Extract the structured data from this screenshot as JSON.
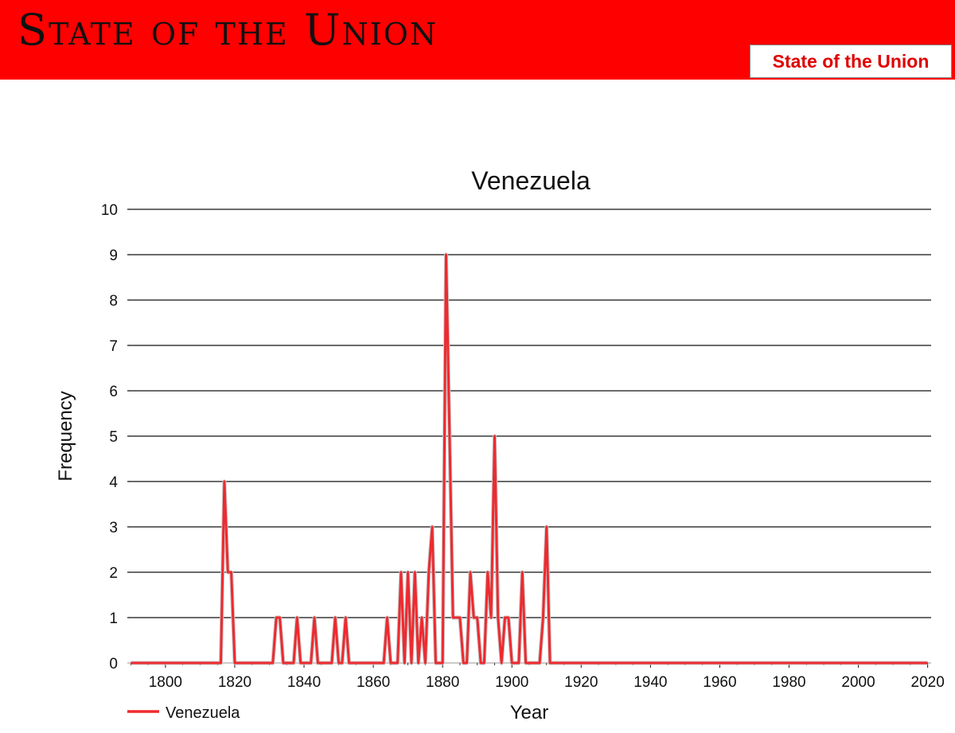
{
  "header": {
    "title": "State of the Union",
    "link_label": "State of the Union"
  },
  "colors": {
    "banner": "#ff0000",
    "series": "#ee2a2f",
    "link_text": "#e00000"
  },
  "chart_data": {
    "type": "line",
    "title": "Venezuela",
    "xlabel": "Year",
    "ylabel": "Frequency",
    "xlim": [
      1789,
      2021
    ],
    "ylim": [
      0,
      10
    ],
    "xticks": [
      1800,
      1820,
      1840,
      1860,
      1880,
      1900,
      1920,
      1940,
      1960,
      1980,
      2000,
      2020
    ],
    "yticks": [
      0,
      1,
      2,
      3,
      4,
      5,
      6,
      7,
      8,
      9,
      10
    ],
    "grid": "horizontal",
    "legend": "bottom-left",
    "series": [
      {
        "name": "Venezuela",
        "x": [
          1790,
          1815,
          1816,
          1817,
          1818,
          1819,
          1820,
          1821,
          1830,
          1831,
          1832,
          1833,
          1834,
          1835,
          1836,
          1837,
          1838,
          1839,
          1840,
          1841,
          1842,
          1843,
          1844,
          1845,
          1846,
          1847,
          1848,
          1849,
          1850,
          1851,
          1852,
          1853,
          1854,
          1861,
          1862,
          1863,
          1864,
          1865,
          1866,
          1867,
          1868,
          1869,
          1870,
          1871,
          1872,
          1873,
          1874,
          1875,
          1876,
          1877,
          1878,
          1879,
          1880,
          1881,
          1882,
          1883,
          1884,
          1885,
          1886,
          1887,
          1888,
          1889,
          1890,
          1891,
          1892,
          1893,
          1894,
          1895,
          1896,
          1897,
          1898,
          1899,
          1900,
          1901,
          1902,
          1903,
          1904,
          1905,
          1906,
          1907,
          1908,
          1909,
          1910,
          1911,
          1912,
          2020
        ],
        "values": [
          0,
          0,
          0,
          4,
          2,
          2,
          0,
          0,
          0,
          0,
          1,
          1,
          0,
          0,
          0,
          0,
          1,
          0,
          0,
          0,
          0,
          1,
          0,
          0,
          0,
          0,
          0,
          1,
          0,
          0,
          1,
          0,
          0,
          0,
          0,
          0,
          1,
          0,
          0,
          0,
          2,
          0,
          2,
          0,
          2,
          0,
          1,
          0,
          2,
          3,
          0,
          0,
          0,
          9,
          5,
          1,
          1,
          1,
          0,
          0,
          2,
          1,
          1,
          0,
          0,
          2,
          1,
          5,
          1,
          0,
          1,
          1,
          0,
          0,
          0,
          2,
          0,
          0,
          0,
          0,
          0,
          1,
          3,
          0,
          0,
          0
        ]
      }
    ]
  }
}
